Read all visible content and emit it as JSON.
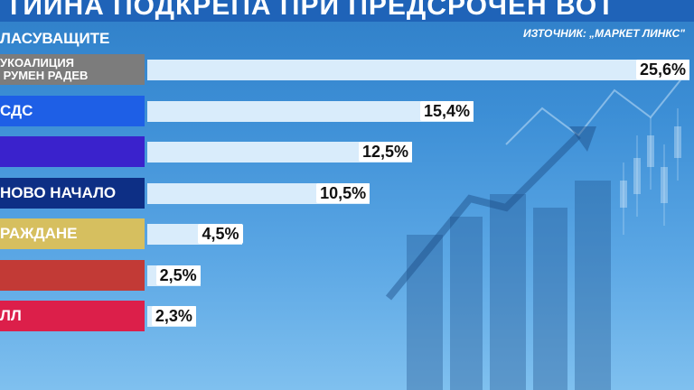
{
  "header": {
    "banner_text": "ТИЙНА ПОДКРЕПА ПРИ ПРЕДСРОЧЕН ВОТ",
    "subtitle": "ЛАСУВАЩИТЕ",
    "source": "ИЗТОЧНИК: „МАРКЕТ ЛИНКС\""
  },
  "colors": {
    "background": "#3d8fd6",
    "banner": "#1f63b8",
    "value_box": "#ffffff",
    "bar_track": "#d9ecfb"
  },
  "chart_data": {
    "type": "bar",
    "orientation": "horizontal",
    "categories": [
      "УКОАЛИЦИЯ\n РУМЕН РАДЕВ",
      "СДС",
      "",
      "НОВО НАЧАЛО",
      "РАЖДАНЕ",
      "",
      "ЛЛ"
    ],
    "values": [
      25.6,
      15.4,
      12.5,
      10.5,
      4.5,
      2.5,
      2.3
    ],
    "value_labels": [
      "25,6%",
      "15,4%",
      "12,5%",
      "10,5%",
      "4,5%",
      "2,5%",
      "2,3%"
    ],
    "category_colors": [
      "#7c7c7c",
      "#1e5fe6",
      "#3a22cc",
      "#0d2f85",
      "#d6bf5f",
      "#c23a36",
      "#dc1f4a"
    ],
    "grid": false,
    "legend": "none",
    "xlim": [
      0,
      25.6
    ]
  }
}
